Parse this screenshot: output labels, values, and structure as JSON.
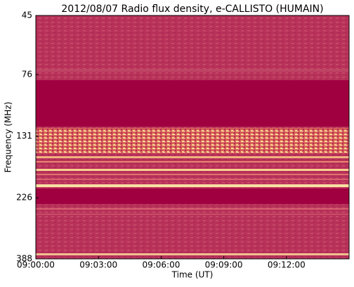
{
  "chart_data": {
    "type": "spectrogram",
    "title": "2012/08/07  Radio flux density, e-CALLISTO (HUMAIN)",
    "xlabel": "Time (UT)",
    "ylabel": "Frequency (MHz)",
    "xlim": [
      32400,
      33300
    ],
    "xticks": [
      {
        "value": 32400,
        "label": "09:00:00"
      },
      {
        "value": 32580,
        "label": "09:03:00"
      },
      {
        "value": 32760,
        "label": "09:06:00"
      },
      {
        "value": 32940,
        "label": "09:09:00"
      },
      {
        "value": 33120,
        "label": "09:12:00"
      }
    ],
    "ylim": [
      45,
      388
    ],
    "yticks": [
      45,
      76,
      131,
      226,
      388
    ],
    "yscale": "log",
    "y_inverted": true,
    "grid": false
  }
}
